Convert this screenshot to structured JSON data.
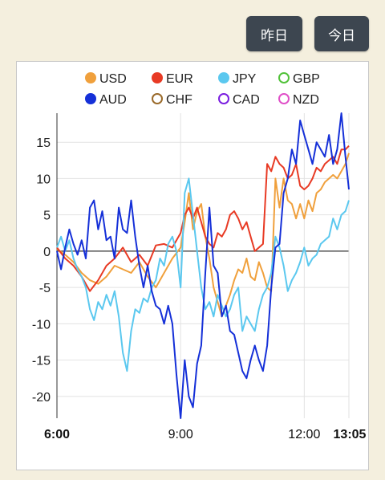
{
  "buttons": {
    "yesterday": "昨日",
    "today": "今日"
  },
  "colors": {
    "button_bg": "#3d4650",
    "page_bg": "#f4efde"
  },
  "chart_data": {
    "type": "line",
    "title": "",
    "xlabel": "",
    "ylabel": "",
    "x_ticks": [
      {
        "label": "6:00",
        "t": 0,
        "bold": true
      },
      {
        "label": "9:00",
        "t": 180,
        "bold": false
      },
      {
        "label": "12:00",
        "t": 360,
        "bold": false
      },
      {
        "label": "13:05",
        "t": 425,
        "bold": true
      }
    ],
    "y_ticks": [
      15,
      10,
      5,
      0,
      -5,
      -10,
      -15,
      -20
    ],
    "ylim": [
      -23,
      19
    ],
    "xlim": [
      0,
      425
    ],
    "grid": true,
    "legend_position": "top",
    "legend": [
      {
        "name": "USD",
        "color": "#f0a03c",
        "filled": true
      },
      {
        "name": "EUR",
        "color": "#e83a24",
        "filled": true
      },
      {
        "name": "JPY",
        "color": "#5bc8ef",
        "filled": true
      },
      {
        "name": "GBP",
        "color": "#52c23a",
        "filled": false
      },
      {
        "name": "AUD",
        "color": "#1530d8",
        "filled": true
      },
      {
        "name": "CHF",
        "color": "#9a6a2a",
        "filled": false
      },
      {
        "name": "CAD",
        "color": "#7a1ee0",
        "filled": false
      },
      {
        "name": "NZD",
        "color": "#e050c8",
        "filled": false
      }
    ],
    "series": [
      {
        "name": "USD",
        "color": "#f0a03c",
        "points": [
          [
            0,
            0.3
          ],
          [
            12,
            -0.5
          ],
          [
            24,
            -1.5
          ],
          [
            36,
            -3
          ],
          [
            48,
            -4
          ],
          [
            60,
            -4.5
          ],
          [
            72,
            -3.5
          ],
          [
            84,
            -2
          ],
          [
            96,
            -2.5
          ],
          [
            108,
            -3
          ],
          [
            120,
            -1.5
          ],
          [
            132,
            -3.5
          ],
          [
            144,
            -5
          ],
          [
            156,
            -3
          ],
          [
            168,
            -1
          ],
          [
            180,
            0.5
          ],
          [
            186,
            4
          ],
          [
            192,
            8
          ],
          [
            198,
            3
          ],
          [
            204,
            5.5
          ],
          [
            210,
            6.5
          ],
          [
            216,
            2
          ],
          [
            222,
            -1
          ],
          [
            228,
            -5
          ],
          [
            234,
            -7
          ],
          [
            240,
            -9
          ],
          [
            246,
            -7.5
          ],
          [
            252,
            -6
          ],
          [
            258,
            -4
          ],
          [
            264,
            -2.5
          ],
          [
            270,
            -3
          ],
          [
            276,
            -1
          ],
          [
            282,
            -3.5
          ],
          [
            288,
            -4
          ],
          [
            294,
            -1.5
          ],
          [
            300,
            -3
          ],
          [
            306,
            -5
          ],
          [
            312,
            -5.5
          ],
          [
            318,
            10
          ],
          [
            324,
            6
          ],
          [
            330,
            10
          ],
          [
            336,
            7
          ],
          [
            342,
            6.5
          ],
          [
            348,
            4.5
          ],
          [
            354,
            6.5
          ],
          [
            360,
            4.5
          ],
          [
            366,
            7
          ],
          [
            372,
            5.5
          ],
          [
            378,
            8
          ],
          [
            384,
            8.5
          ],
          [
            390,
            9.5
          ],
          [
            396,
            10
          ],
          [
            402,
            10.5
          ],
          [
            408,
            10
          ],
          [
            414,
            11
          ],
          [
            420,
            12
          ],
          [
            425,
            13.5
          ]
        ]
      },
      {
        "name": "EUR",
        "color": "#e83a24",
        "points": [
          [
            0,
            0.5
          ],
          [
            12,
            -1
          ],
          [
            24,
            -2
          ],
          [
            36,
            -3.5
          ],
          [
            48,
            -5.5
          ],
          [
            60,
            -4
          ],
          [
            72,
            -2
          ],
          [
            84,
            -1
          ],
          [
            96,
            0.5
          ],
          [
            108,
            -1.5
          ],
          [
            120,
            -0.5
          ],
          [
            132,
            -2
          ],
          [
            144,
            0.8
          ],
          [
            156,
            1
          ],
          [
            168,
            0.5
          ],
          [
            180,
            2.5
          ],
          [
            186,
            5
          ],
          [
            192,
            6
          ],
          [
            198,
            4.5
          ],
          [
            204,
            6
          ],
          [
            210,
            4
          ],
          [
            216,
            2
          ],
          [
            222,
            1
          ],
          [
            228,
            0.5
          ],
          [
            234,
            2.5
          ],
          [
            240,
            2
          ],
          [
            246,
            3
          ],
          [
            252,
            5
          ],
          [
            258,
            5.5
          ],
          [
            264,
            4.5
          ],
          [
            270,
            3
          ],
          [
            276,
            4
          ],
          [
            282,
            2
          ],
          [
            288,
            0
          ],
          [
            294,
            0.5
          ],
          [
            300,
            1
          ],
          [
            306,
            12
          ],
          [
            312,
            11
          ],
          [
            318,
            13
          ],
          [
            324,
            12
          ],
          [
            330,
            11.5
          ],
          [
            336,
            10
          ],
          [
            342,
            10.5
          ],
          [
            348,
            12
          ],
          [
            354,
            9
          ],
          [
            360,
            8.5
          ],
          [
            366,
            9
          ],
          [
            372,
            10
          ],
          [
            378,
            11.5
          ],
          [
            384,
            11
          ],
          [
            390,
            12
          ],
          [
            396,
            12.5
          ],
          [
            402,
            13
          ],
          [
            408,
            12
          ],
          [
            414,
            14
          ],
          [
            420,
            14
          ],
          [
            425,
            14.5
          ]
        ]
      },
      {
        "name": "JPY",
        "color": "#5bc8ef",
        "points": [
          [
            0,
            0.5
          ],
          [
            6,
            2
          ],
          [
            12,
            0
          ],
          [
            18,
            1.5
          ],
          [
            24,
            -1
          ],
          [
            30,
            -2.5
          ],
          [
            36,
            -3.5
          ],
          [
            42,
            -5
          ],
          [
            48,
            -8
          ],
          [
            54,
            -9.5
          ],
          [
            60,
            -7
          ],
          [
            66,
            -8
          ],
          [
            72,
            -6
          ],
          [
            78,
            -7.5
          ],
          [
            84,
            -5.5
          ],
          [
            90,
            -9
          ],
          [
            96,
            -14
          ],
          [
            102,
            -16.5
          ],
          [
            108,
            -11
          ],
          [
            114,
            -8
          ],
          [
            120,
            -8.5
          ],
          [
            126,
            -6.5
          ],
          [
            132,
            -7
          ],
          [
            138,
            -5
          ],
          [
            144,
            -4
          ],
          [
            150,
            -1
          ],
          [
            156,
            -2
          ],
          [
            162,
            1
          ],
          [
            168,
            2
          ],
          [
            174,
            0
          ],
          [
            180,
            -5
          ],
          [
            186,
            8
          ],
          [
            192,
            10
          ],
          [
            198,
            5
          ],
          [
            204,
            0
          ],
          [
            210,
            -5
          ],
          [
            216,
            -8
          ],
          [
            222,
            -7
          ],
          [
            228,
            -9
          ],
          [
            234,
            -6
          ],
          [
            240,
            -7.5
          ],
          [
            246,
            -9
          ],
          [
            252,
            -8
          ],
          [
            258,
            -6
          ],
          [
            264,
            -5
          ],
          [
            270,
            -11
          ],
          [
            276,
            -9
          ],
          [
            282,
            -10
          ],
          [
            288,
            -11
          ],
          [
            294,
            -8
          ],
          [
            300,
            -6
          ],
          [
            306,
            -5
          ],
          [
            312,
            -3
          ],
          [
            318,
            2
          ],
          [
            324,
            0.5
          ],
          [
            330,
            -2
          ],
          [
            336,
            -5.5
          ],
          [
            342,
            -4
          ],
          [
            348,
            -3
          ],
          [
            354,
            -1.5
          ],
          [
            360,
            0.5
          ],
          [
            366,
            -2
          ],
          [
            372,
            -1
          ],
          [
            378,
            -0.5
          ],
          [
            384,
            1
          ],
          [
            390,
            1.5
          ],
          [
            396,
            2
          ],
          [
            402,
            4.5
          ],
          [
            408,
            3
          ],
          [
            414,
            5
          ],
          [
            420,
            5.5
          ],
          [
            425,
            7
          ]
        ]
      },
      {
        "name": "AUD",
        "color": "#1530d8",
        "points": [
          [
            0,
            0
          ],
          [
            6,
            -2.5
          ],
          [
            12,
            0.5
          ],
          [
            18,
            3
          ],
          [
            24,
            1
          ],
          [
            30,
            -0.5
          ],
          [
            36,
            1.5
          ],
          [
            42,
            -1
          ],
          [
            48,
            6
          ],
          [
            54,
            7
          ],
          [
            60,
            3
          ],
          [
            66,
            5.5
          ],
          [
            72,
            1.5
          ],
          [
            78,
            2
          ],
          [
            84,
            -1
          ],
          [
            90,
            6
          ],
          [
            96,
            3
          ],
          [
            102,
            2.5
          ],
          [
            108,
            7
          ],
          [
            114,
            2
          ],
          [
            120,
            -2
          ],
          [
            126,
            -5
          ],
          [
            132,
            -2
          ],
          [
            138,
            -5.5
          ],
          [
            144,
            -7.5
          ],
          [
            150,
            -8
          ],
          [
            156,
            -10
          ],
          [
            162,
            -7.5
          ],
          [
            168,
            -10
          ],
          [
            174,
            -17
          ],
          [
            180,
            -23
          ],
          [
            186,
            -15
          ],
          [
            192,
            -20
          ],
          [
            198,
            -21.5
          ],
          [
            204,
            -15.5
          ],
          [
            210,
            -13
          ],
          [
            216,
            -3
          ],
          [
            222,
            6
          ],
          [
            228,
            -2
          ],
          [
            234,
            -3
          ],
          [
            240,
            -9
          ],
          [
            246,
            -7.5
          ],
          [
            252,
            -11
          ],
          [
            258,
            -11.5
          ],
          [
            264,
            -14
          ],
          [
            270,
            -16.5
          ],
          [
            276,
            -17.5
          ],
          [
            282,
            -15
          ],
          [
            288,
            -13
          ],
          [
            294,
            -15
          ],
          [
            300,
            -16.5
          ],
          [
            306,
            -13
          ],
          [
            312,
            -5
          ],
          [
            318,
            0.5
          ],
          [
            324,
            1
          ],
          [
            330,
            8
          ],
          [
            336,
            10
          ],
          [
            342,
            14
          ],
          [
            348,
            12
          ],
          [
            354,
            18
          ],
          [
            360,
            16
          ],
          [
            366,
            14
          ],
          [
            372,
            12
          ],
          [
            378,
            15
          ],
          [
            384,
            14
          ],
          [
            390,
            13
          ],
          [
            396,
            16
          ],
          [
            402,
            12
          ],
          [
            408,
            14
          ],
          [
            414,
            19
          ],
          [
            420,
            13
          ],
          [
            425,
            8.5
          ]
        ]
      }
    ]
  }
}
